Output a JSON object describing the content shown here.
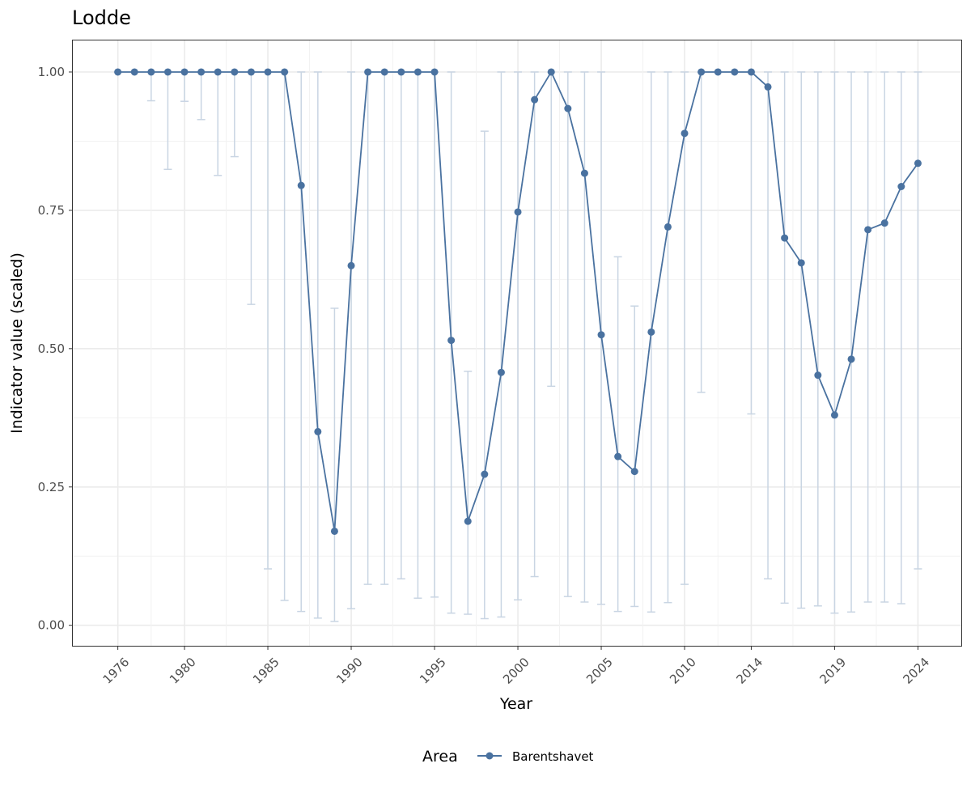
{
  "chart_data": {
    "type": "line",
    "title": "Lodde",
    "xlabel": "Year",
    "ylabel": "Indicator value (scaled)",
    "ylim": [
      -0.037,
      1.057
    ],
    "xlim": [
      1973.3,
      2026.6
    ],
    "yticks": [
      "0.00",
      "0.25",
      "0.50",
      "0.75",
      "1.00"
    ],
    "xticks": [
      "1976",
      "1980",
      "1985",
      "1990",
      "1995",
      "2000",
      "2005",
      "2010",
      "2014",
      "2019",
      "2024"
    ],
    "grid": true,
    "legend": {
      "title": "Area",
      "position": "bottom",
      "entries": [
        "Barentshavet"
      ]
    },
    "series": [
      {
        "name": "Barentshavet",
        "color": "#4a72a0",
        "error_color": "#c9d5e3",
        "x": [
          1976,
          1977,
          1978,
          1979,
          1980,
          1981,
          1982,
          1983,
          1984,
          1985,
          1986,
          1987,
          1988,
          1989,
          1990,
          1991,
          1992,
          1993,
          1994,
          1995,
          1996,
          1997,
          1998,
          1999,
          2000,
          2001,
          2002,
          2003,
          2004,
          2005,
          2006,
          2007,
          2008,
          2009,
          2010,
          2011,
          2012,
          2013,
          2014,
          2015,
          2016,
          2017,
          2018,
          2019,
          2020,
          2021,
          2022,
          2023,
          2024
        ],
        "y": [
          1.0,
          1.0,
          1.0,
          1.0,
          1.0,
          1.0,
          1.0,
          1.0,
          1.0,
          1.0,
          1.0,
          0.795,
          0.35,
          0.17,
          0.65,
          1.0,
          1.0,
          1.0,
          1.0,
          1.0,
          0.515,
          0.188,
          0.273,
          0.457,
          0.747,
          0.95,
          1.0,
          0.934,
          0.817,
          0.525,
          0.305,
          0.278,
          0.53,
          0.72,
          0.889,
          1.0,
          1.0,
          1.0,
          1.0,
          0.973,
          0.7,
          0.655,
          0.452,
          0.38,
          0.481,
          0.715,
          0.727,
          0.793,
          0.835
        ],
        "lower": [
          1.0,
          1.0,
          0.948,
          0.824,
          0.947,
          0.914,
          0.813,
          0.847,
          0.58,
          0.102,
          0.045,
          0.025,
          0.013,
          0.007,
          0.03,
          0.074,
          0.074,
          0.084,
          0.049,
          0.051,
          0.022,
          0.02,
          0.012,
          0.015,
          0.046,
          0.088,
          0.432,
          0.052,
          0.042,
          0.038,
          0.025,
          0.034,
          0.024,
          0.041,
          0.074,
          0.421,
          1.0,
          1.0,
          0.382,
          0.084,
          0.04,
          0.031,
          0.035,
          0.022,
          0.024,
          0.042,
          0.042,
          0.039,
          0.102
        ],
        "upper": [
          1.0,
          1.0,
          1.0,
          1.0,
          1.0,
          1.0,
          1.0,
          1.0,
          1.0,
          1.0,
          1.0,
          1.0,
          1.0,
          0.573,
          1.0,
          1.0,
          1.0,
          1.0,
          1.0,
          1.0,
          1.0,
          0.459,
          0.893,
          1.0,
          1.0,
          1.0,
          1.0,
          1.0,
          1.0,
          1.0,
          0.666,
          0.577,
          1.0,
          1.0,
          1.0,
          1.0,
          1.0,
          1.0,
          1.0,
          1.0,
          1.0,
          1.0,
          1.0,
          1.0,
          1.0,
          1.0,
          1.0,
          1.0,
          1.0
        ]
      }
    ]
  }
}
